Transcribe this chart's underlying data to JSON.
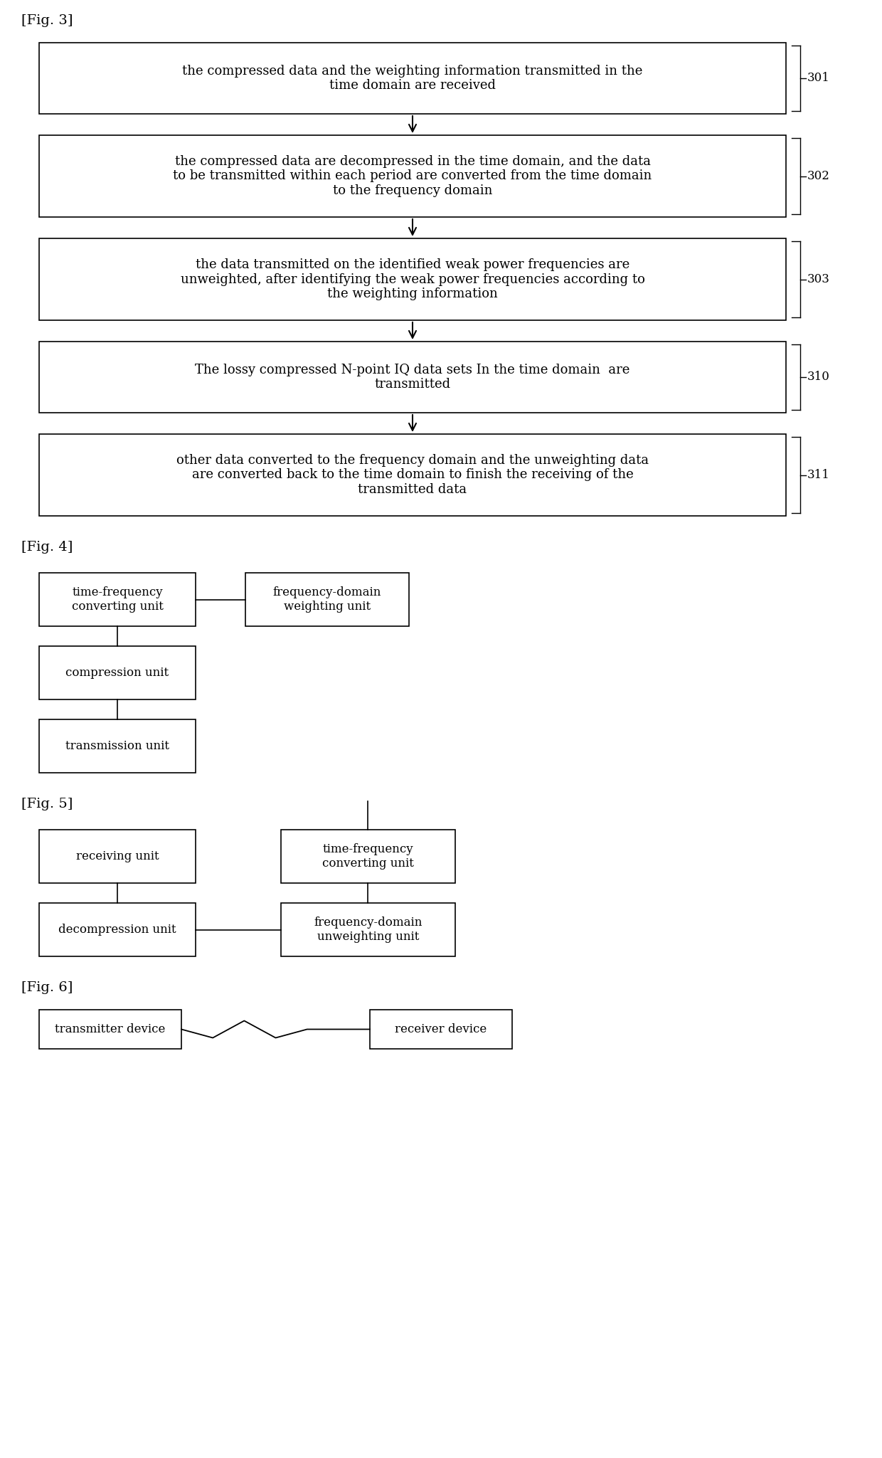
{
  "bg_color": "#ffffff",
  "fig3_label": "[Fig. 3]",
  "fig4_label": "[Fig. 4]",
  "fig5_label": "[Fig. 5]",
  "fig6_label": "[Fig. 6]",
  "fig3_boxes": [
    {
      "text": "the compressed data and the weighting information transmitted in the\ntime domain are received",
      "label": "301"
    },
    {
      "text": "the compressed data are decompressed in the time domain, and the data\nto be transmitted within each period are converted from the time domain\nto the frequency domain",
      "label": "302"
    },
    {
      "text": "the data transmitted on the identified weak power frequencies are\nunweighted, after identifying the weak power frequencies according to\nthe weighting information",
      "label": "303"
    },
    {
      "text": "The lossy compressed N-point IQ data sets In the time domain  are\ntransmitted",
      "label": "310"
    },
    {
      "text": "other data converted to the frequency domain and the unweighting data\nare converted back to the time domain to finish the receiving of the\ntransmitted data",
      "label": "311"
    }
  ],
  "fig4_boxes": [
    {
      "id": "tf_conv",
      "text": "time-frequency\nconverting unit"
    },
    {
      "id": "fd_weight",
      "text": "frequency-domain\nweighting unit"
    },
    {
      "id": "compress",
      "text": "compression unit"
    },
    {
      "id": "transmit",
      "text": "transmission unit"
    }
  ],
  "fig5_boxes": [
    {
      "id": "recv",
      "text": "receiving unit"
    },
    {
      "id": "tf_conv5",
      "text": "time-frequency\nconverting unit"
    },
    {
      "id": "decomp",
      "text": "decompression unit"
    },
    {
      "id": "fd_unweight",
      "text": "frequency-domain\nunweighting unit"
    }
  ],
  "fig6_boxes": [
    {
      "id": "tx",
      "text": "transmitter device"
    },
    {
      "id": "rx",
      "text": "receiver device"
    }
  ]
}
